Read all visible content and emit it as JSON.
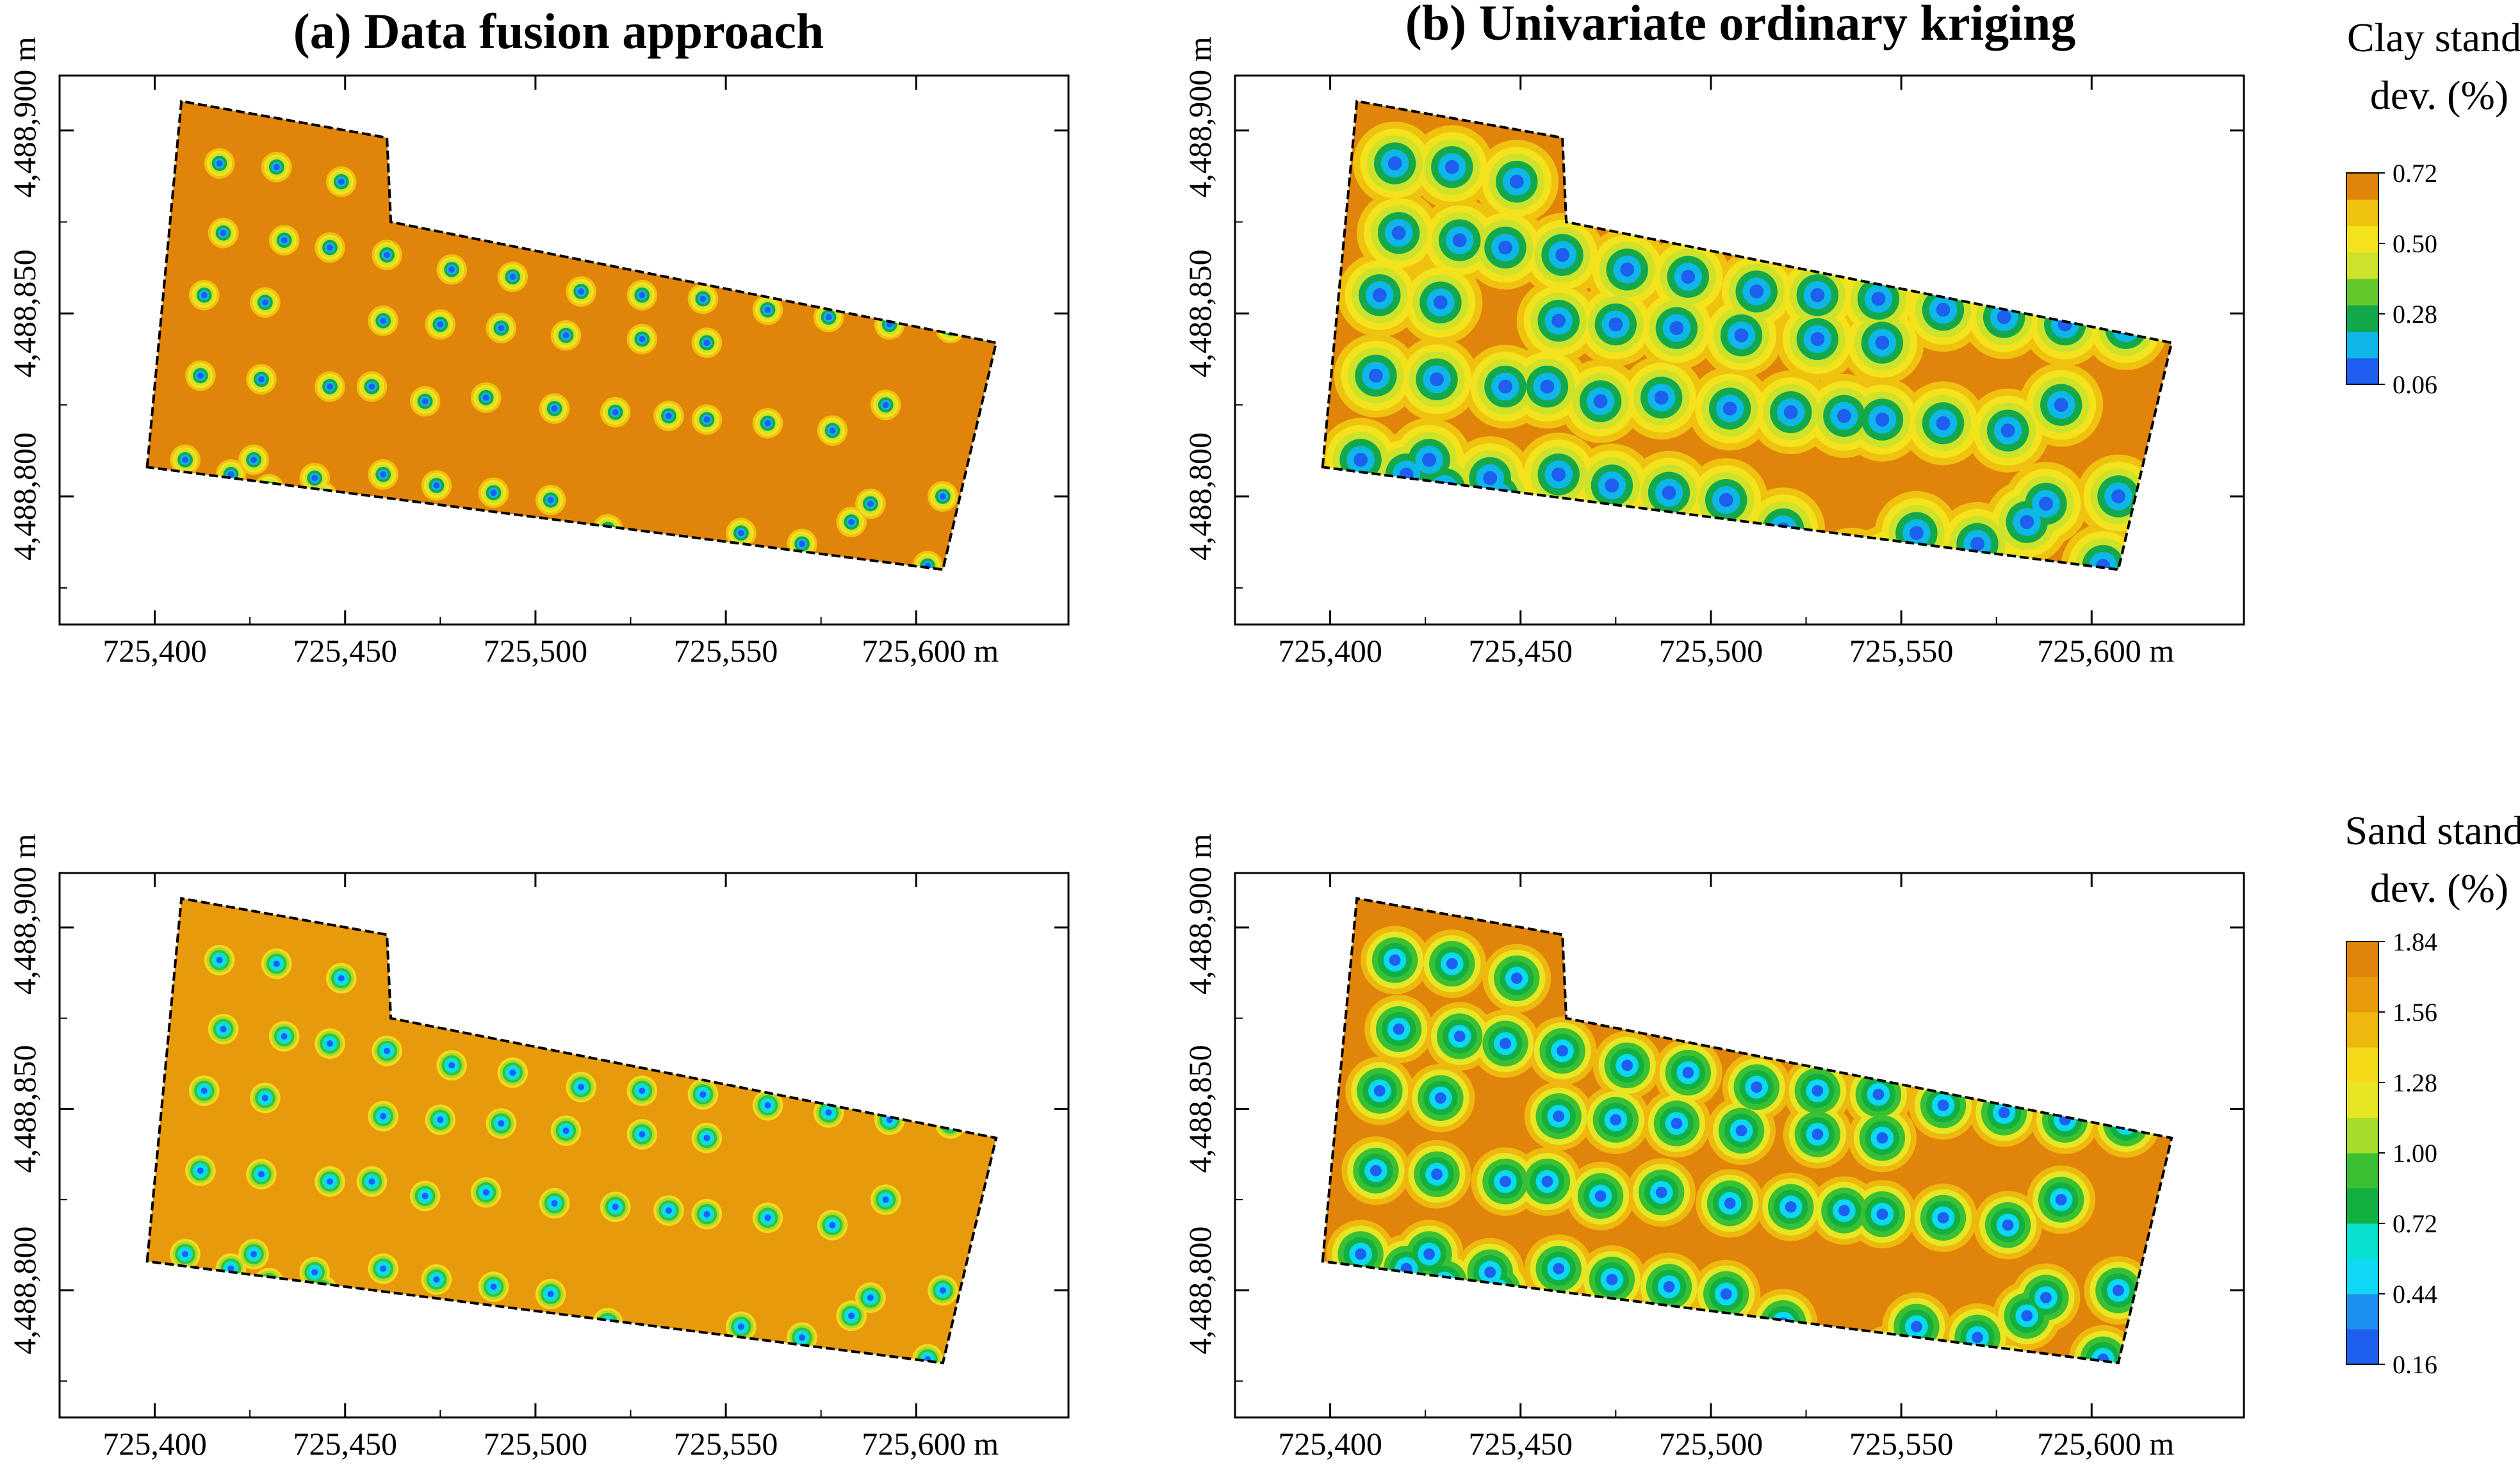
{
  "figure": {
    "col_titles": [
      "(a) Data fusion approach",
      "(b) Univariate ordinary kriging"
    ],
    "row_legends": [
      {
        "title_line1": "Clay stand.",
        "title_line2": "dev. (%)"
      },
      {
        "title_line1": "Sand stand.",
        "title_line2": "dev. (%)"
      }
    ]
  },
  "chart_data": [
    {
      "type": "heatmap",
      "panel": "top-left",
      "title": "(a) Data fusion approach",
      "variable": "Clay standard deviation (%)",
      "xlim": [
        725375,
        725640
      ],
      "ylim": [
        4488765,
        4488915
      ],
      "xticks": [
        725400,
        725450,
        725500,
        725550,
        725600
      ],
      "xtick_labels": [
        "725,400",
        "725,450",
        "725,500",
        "725,550",
        "725,600 m"
      ],
      "yticks": [
        4488800,
        4488850,
        4488900
      ],
      "ytick_labels": [
        "4,488,800",
        "4,488,850",
        "4,488,900 m"
      ],
      "background_value": 0.72,
      "sample_min_value": 0.06,
      "halo_radius_m": 4.0,
      "colorbar": {
        "ticks": [
          0.06,
          0.28,
          0.5,
          0.72
        ],
        "tick_labels": [
          "0.06",
          "0.28",
          "0.50",
          "0.72"
        ],
        "colors": [
          "#1e5ff0",
          "#0fb6e8",
          "#13a84a",
          "#63c92b",
          "#cde22a",
          "#f3e21c",
          "#efc20f",
          "#e0840a"
        ]
      }
    },
    {
      "type": "heatmap",
      "panel": "top-right",
      "title": "(b) Univariate ordinary kriging",
      "variable": "Clay standard deviation (%)",
      "xlim": [
        725375,
        725640
      ],
      "ylim": [
        4488765,
        4488915
      ],
      "xticks": [
        725400,
        725450,
        725500,
        725550,
        725600
      ],
      "xtick_labels": [
        "725,400",
        "725,450",
        "725,500",
        "725,550",
        "725,600 m"
      ],
      "yticks": [
        4488800,
        4488850,
        4488900
      ],
      "ytick_labels": [
        "4,488,800",
        "4,488,850",
        "4,488,900 m"
      ],
      "background_value": 0.72,
      "sample_min_value": 0.06,
      "halo_radius_m": 11.0,
      "colorbar": {
        "ticks": [
          0.06,
          0.28,
          0.5,
          0.72
        ],
        "tick_labels": [
          "0.06",
          "0.28",
          "0.50",
          "0.72"
        ],
        "colors": [
          "#1e5ff0",
          "#0fb6e8",
          "#13a84a",
          "#63c92b",
          "#cde22a",
          "#f3e21c",
          "#efc20f",
          "#e0840a"
        ]
      }
    },
    {
      "type": "heatmap",
      "panel": "bottom-left",
      "title": "",
      "variable": "Sand standard deviation (%)",
      "xlim": [
        725375,
        725640
      ],
      "ylim": [
        4488765,
        4488915
      ],
      "xticks": [
        725400,
        725450,
        725500,
        725550,
        725600
      ],
      "xtick_labels": [
        "725,400",
        "725,450",
        "725,500",
        "725,550",
        "725,600 m"
      ],
      "yticks": [
        4488800,
        4488850,
        4488900
      ],
      "ytick_labels": [
        "4,488,800",
        "4,488,850",
        "4,488,900 m"
      ],
      "background_value": 1.68,
      "sample_min_value": 0.16,
      "halo_radius_m": 4.0,
      "colorbar": {
        "ticks": [
          0.16,
          0.44,
          0.72,
          1.0,
          1.28,
          1.56,
          1.84
        ],
        "tick_labels": [
          "0.16",
          "0.44",
          "0.72",
          "1.00",
          "1.28",
          "1.56",
          "1.84"
        ],
        "colors": [
          "#1e5ff0",
          "#1c8ff0",
          "#0fd8f5",
          "#08e0d0",
          "#12b040",
          "#3cc033",
          "#a7dc2c",
          "#e7e625",
          "#f5da1a",
          "#eeb80f",
          "#e79a0c",
          "#e0840a"
        ]
      }
    },
    {
      "type": "heatmap",
      "panel": "bottom-right",
      "title": "",
      "variable": "Sand standard deviation (%)",
      "xlim": [
        725375,
        725640
      ],
      "ylim": [
        4488765,
        4488915
      ],
      "xticks": [
        725400,
        725450,
        725500,
        725550,
        725600
      ],
      "xtick_labels": [
        "725,400",
        "725,450",
        "725,500",
        "725,550",
        "725,600 m"
      ],
      "yticks": [
        4488800,
        4488850,
        4488900
      ],
      "ytick_labels": [
        "4,488,800",
        "4,488,850",
        "4,488,900 m"
      ],
      "background_value": 1.84,
      "sample_min_value": 0.16,
      "halo_radius_m": 9.0,
      "colorbar": {
        "ticks": [
          0.16,
          0.44,
          0.72,
          1.0,
          1.28,
          1.56,
          1.84
        ],
        "tick_labels": [
          "0.16",
          "0.44",
          "0.72",
          "1.00",
          "1.28",
          "1.56",
          "1.84"
        ],
        "colors": [
          "#1e5ff0",
          "#1c8ff0",
          "#0fd8f5",
          "#08e0d0",
          "#12b040",
          "#3cc033",
          "#a7dc2c",
          "#e7e625",
          "#f5da1a",
          "#eeb80f",
          "#e79a0c",
          "#e0840a"
        ]
      }
    }
  ],
  "field_boundary": [
    [
      725398,
      4488808
    ],
    [
      725407,
      4488908
    ],
    [
      725461,
      4488898
    ],
    [
      725462,
      4488875
    ],
    [
      725621,
      4488842
    ],
    [
      725607,
      4488780
    ]
  ],
  "sampling_points": [
    [
      725417,
      4488891
    ],
    [
      725432,
      4488890
    ],
    [
      725449,
      4488886
    ],
    [
      725418,
      4488872
    ],
    [
      725434,
      4488870
    ],
    [
      725446,
      4488868
    ],
    [
      725461,
      4488866
    ],
    [
      725478,
      4488862
    ],
    [
      725494,
      4488860
    ],
    [
      725512,
      4488856
    ],
    [
      725528,
      4488855
    ],
    [
      725544,
      4488854
    ],
    [
      725561,
      4488851
    ],
    [
      725577,
      4488849
    ],
    [
      725593,
      4488847
    ],
    [
      725609,
      4488846
    ],
    [
      725413,
      4488855
    ],
    [
      725429,
      4488853
    ],
    [
      725460,
      4488848
    ],
    [
      725475,
      4488847
    ],
    [
      725491,
      4488846
    ],
    [
      725508,
      4488844
    ],
    [
      725528,
      4488843
    ],
    [
      725545,
      4488842
    ],
    [
      725412,
      4488833
    ],
    [
      725428,
      4488832
    ],
    [
      725446,
      4488830
    ],
    [
      725457,
      4488830
    ],
    [
      725471,
      4488826
    ],
    [
      725487,
      4488827
    ],
    [
      725505,
      4488824
    ],
    [
      725521,
      4488823
    ],
    [
      725535,
      4488822
    ],
    [
      725545,
      4488821
    ],
    [
      725561,
      4488820
    ],
    [
      725578,
      4488818
    ],
    [
      725592,
      4488825
    ],
    [
      725408,
      4488810
    ],
    [
      725420,
      4488806
    ],
    [
      725426,
      4488810
    ],
    [
      725430,
      4488802
    ],
    [
      725442,
      4488805
    ],
    [
      725444,
      4488800
    ],
    [
      725460,
      4488806
    ],
    [
      725474,
      4488803
    ],
    [
      725489,
      4488801
    ],
    [
      725504,
      4488799
    ],
    [
      725516,
      4488786
    ],
    [
      725519,
      4488791
    ],
    [
      725537,
      4488780
    ],
    [
      725547,
      4488781
    ],
    [
      725554,
      4488790
    ],
    [
      725565,
      4488778
    ],
    [
      725570,
      4488787
    ],
    [
      725578,
      4488777
    ],
    [
      725583,
      4488793
    ],
    [
      725588,
      4488798
    ],
    [
      725597,
      4488770
    ],
    [
      725603,
      4488781
    ],
    [
      725607,
      4488800
    ]
  ]
}
